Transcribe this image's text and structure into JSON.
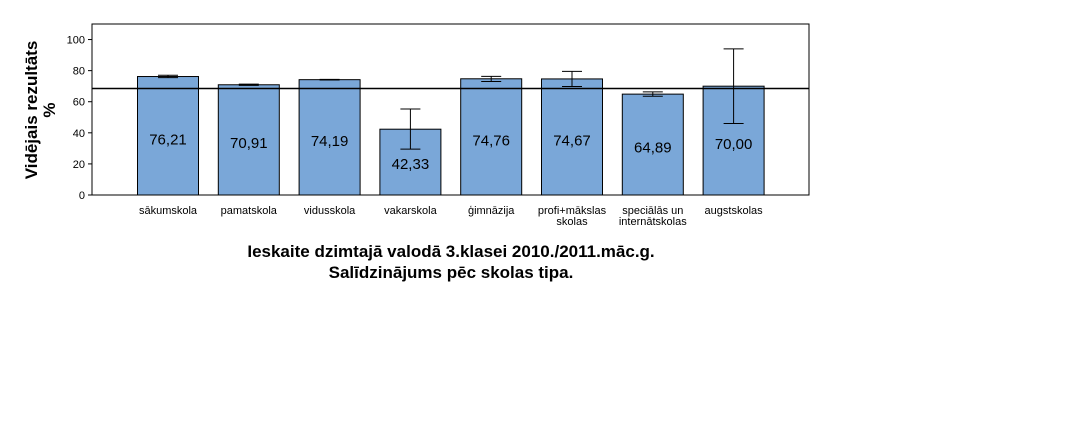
{
  "chart_data": {
    "type": "bar",
    "title": [
      "Ieskaite dzimtajā valodā 3.klasei 2010./2011.māc.g.",
      "Salīdzinājums pēc skolas tipa."
    ],
    "ylabel": [
      "Vidējais rezultāts",
      "%"
    ],
    "xlabel": "",
    "ylim": [
      0,
      110
    ],
    "yticks": [
      "0",
      "20",
      "40",
      "60",
      "80",
      "100"
    ],
    "ytick_values": [
      0,
      20,
      40,
      60,
      80,
      100
    ],
    "categories": [
      [
        "sākumskola"
      ],
      [
        "pamatskola"
      ],
      [
        "vidusskola"
      ],
      [
        "vakarskola"
      ],
      [
        "ģimnāzija"
      ],
      [
        "profi+mākslas",
        "skolas"
      ],
      [
        "speciālās un",
        "internātskolas"
      ],
      [
        "augstskolas"
      ]
    ],
    "values": [
      76.21,
      70.91,
      74.19,
      42.33,
      74.76,
      74.67,
      64.89,
      70.0
    ],
    "value_labels": [
      "76,21",
      "70,91",
      "74,19",
      "42,33",
      "74,76",
      "74,67",
      "64,89",
      "70,00"
    ],
    "error_low": [
      75.5,
      70.5,
      74.0,
      29.5,
      73.0,
      69.8,
      63.5,
      46.0
    ],
    "error_high": [
      77.0,
      71.3,
      74.4,
      55.3,
      76.3,
      79.5,
      66.3,
      94.0
    ],
    "reference_line": 68.5,
    "bar_color": "#7aa7d8",
    "grid": false
  }
}
